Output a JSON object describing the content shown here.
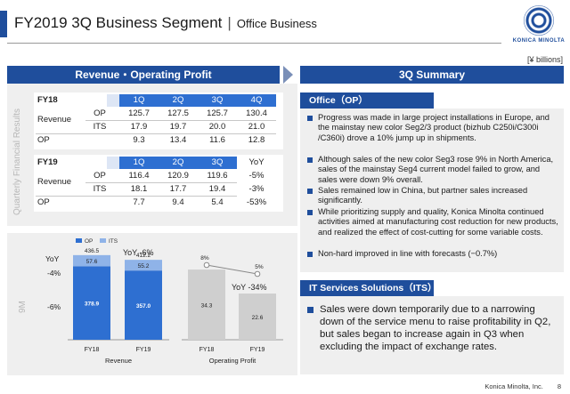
{
  "header": {
    "title": "FY2019 3Q Business Segment",
    "separator": "|",
    "subtitle": "Office Business",
    "logo_text": "KONICA MINOLTA"
  },
  "units": "[¥ billions]",
  "left_header": "Revenue・Operating Profit",
  "right_header": "3Q Summary",
  "quarterly": {
    "side_label": "Quarterly Financial Results",
    "fy18": {
      "label": "FY18",
      "cols": [
        "1Q",
        "2Q",
        "3Q",
        "4Q"
      ],
      "revenue_label": "Revenue",
      "rows": [
        {
          "sub": "OP",
          "values": [
            "125.7",
            "127.5",
            "125.7",
            "130.4"
          ]
        },
        {
          "sub": "ITS",
          "values": [
            "17.9",
            "19.7",
            "20.0",
            "21.0"
          ]
        }
      ],
      "op_label": "OP",
      "op_values": [
        "9.3",
        "13.4",
        "11.6",
        "12.8"
      ]
    },
    "fy19": {
      "label": "FY19",
      "cols": [
        "1Q",
        "2Q",
        "3Q"
      ],
      "yoy_label": "YoY",
      "revenue_label": "Revenue",
      "rows": [
        {
          "sub": "OP",
          "values": [
            "116.4",
            "120.9",
            "119.6"
          ],
          "yoy": "-5%"
        },
        {
          "sub": "ITS",
          "values": [
            "18.1",
            "17.7",
            "19.4"
          ],
          "yoy": "-3%"
        }
      ],
      "op_label": "OP",
      "op_values": [
        "7.7",
        "9.4",
        "5.4"
      ],
      "op_yoy": "-53%"
    }
  },
  "nine_month": {
    "side_label": "9M",
    "legend": {
      "op": "OP",
      "its": "ITS"
    },
    "revenue": {
      "caption": "Revenue",
      "yoy_total": "YoY -6%",
      "yoy_label": "YoY",
      "yoy_its": "-4%",
      "yoy_op": "-6%"
    },
    "profit": {
      "caption": "Operating Profit",
      "yoy": "YoY -34%"
    }
  },
  "chart_data": [
    {
      "type": "bar",
      "title": "",
      "xlabel": "Revenue",
      "categories": [
        "FY18",
        "FY19"
      ],
      "series": [
        {
          "name": "OP",
          "values": [
            378.9,
            357.0
          ]
        },
        {
          "name": "ITS",
          "values": [
            57.6,
            55.2
          ]
        }
      ],
      "totals": [
        436.5,
        412.2
      ],
      "stacked": true
    },
    {
      "type": "bar",
      "title": "",
      "xlabel": "Operating Profit",
      "categories": [
        "FY18",
        "FY19"
      ],
      "series": [
        {
          "name": "",
          "values": [
            34.3,
            22.6
          ]
        }
      ],
      "margin_line": [
        {
          "category": "FY18",
          "label": "8%"
        },
        {
          "category": "FY19",
          "label": "5%"
        }
      ]
    }
  ],
  "summary": {
    "office_head": "Office（OP）",
    "office_bullets": [
      "Progress was made in large project installations in Europe, and the mainstay new color Seg2/3 product (bizhub C250i/C300i /C360i) drove a 10% jump up in shipments.",
      "Although sales of the new color Seg3 rose 9% in North America, sales of the mainstay Seg4 current model failed to grow, and sales were down 9% overall.",
      "Sales remained low in China, but partner sales increased significantly.",
      "While prioritizing supply and quality, Konica Minolta continued activities aimed at manufacturing cost reduction for new products, and realized the effect of cost-cutting for some variable costs.",
      "Non-hard improved in line with forecasts (−0.7%)"
    ],
    "its_head": "IT Services Solutions（ITS）",
    "its_bullets": [
      "Sales were down temporarily due to a narrowing down of the service menu to raise profitability in Q2, but sales began to increase again in Q3 when excluding the impact of exchange rates."
    ]
  },
  "footer": {
    "company": "Konica Minolta, Inc.",
    "page": "8"
  },
  "colors": {
    "brand_blue": "#1f4e9c",
    "bar_op": "#2e6fd1",
    "bar_its": "#8fb3e8",
    "bar_profit": "#cfcfcf",
    "panel_bg": "#efefef"
  }
}
